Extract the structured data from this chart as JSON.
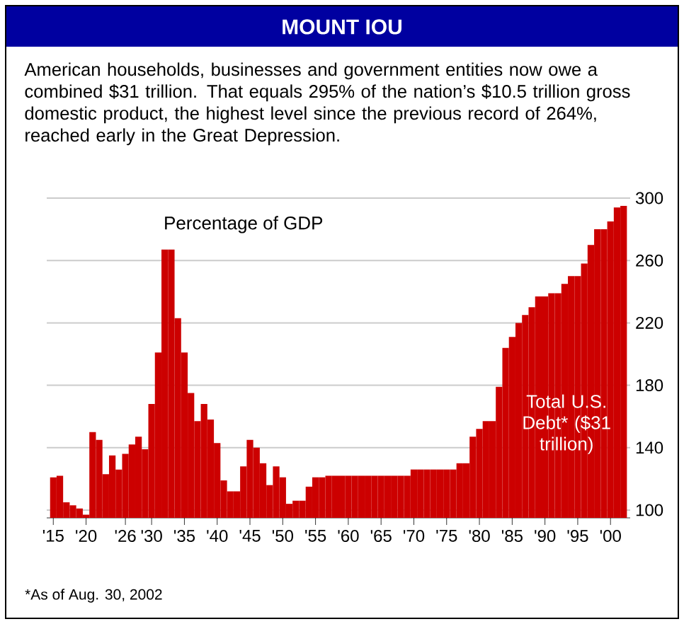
{
  "chart_data": {
    "type": "bar",
    "title": "MOUNT IOU",
    "subtitle": "American households, businesses and government entities now owe a combined $31 trillion. That equals 295% of the nation’s $10.5 trillion gross domestic product, the highest level since the previous record of 264%, reached early in the Great Depression.",
    "ylabel": "Percentage of GDP",
    "annotations": [
      "*As of Aug. 30, 2002"
    ],
    "x": [
      1915,
      1916,
      1917,
      1918,
      1919,
      1920,
      1921,
      1922,
      1923,
      1924,
      1925,
      1926,
      1927,
      1928,
      1929,
      1930,
      1931,
      1932,
      1933,
      1934,
      1935,
      1936,
      1937,
      1938,
      1939,
      1940,
      1941,
      1942,
      1943,
      1944,
      1945,
      1946,
      1947,
      1948,
      1949,
      1950,
      1951,
      1952,
      1953,
      1954,
      1955,
      1956,
      1957,
      1958,
      1959,
      1960,
      1961,
      1962,
      1963,
      1964,
      1965,
      1966,
      1967,
      1968,
      1969,
      1970,
      1971,
      1972,
      1973,
      1974,
      1975,
      1976,
      1977,
      1978,
      1979,
      1980,
      1981,
      1982,
      1983,
      1984,
      1985,
      1986,
      1987,
      1988,
      1989,
      1990,
      1991,
      1992,
      1993,
      1994,
      1995,
      1996,
      1997,
      1998,
      1999,
      2000,
      2001,
      2002
    ],
    "series": [
      {
        "name": "Total U.S. Debt* ($31 trillion)",
        "color": "#cc0000",
        "values": [
          121,
          122,
          105,
          103,
          101,
          97,
          150,
          145,
          123,
          135,
          126,
          136,
          142,
          147,
          139,
          168,
          201,
          267,
          267,
          223,
          201,
          175,
          157,
          168,
          158,
          143,
          119,
          112,
          112,
          128,
          145,
          140,
          130,
          116,
          128,
          121,
          104,
          106,
          106,
          115,
          121,
          121,
          122,
          122,
          122,
          122,
          122,
          122,
          122,
          122,
          122,
          122,
          122,
          122,
          122,
          126,
          126,
          126,
          126,
          126,
          126,
          126,
          130,
          130,
          147,
          152,
          157,
          157,
          179,
          204,
          211,
          220,
          225,
          230,
          237,
          237,
          239,
          239,
          245,
          250,
          250,
          258,
          270,
          280,
          280,
          285,
          294,
          295
        ]
      }
    ],
    "xlim": [
      1914,
      2003
    ],
    "ylim": [
      95,
      300
    ],
    "xticks": [
      {
        "value": 1915,
        "label": "'15"
      },
      {
        "value": 1920,
        "label": "'20"
      },
      {
        "value": 1926,
        "label": "'26"
      },
      {
        "value": 1930,
        "label": "'30"
      },
      {
        "value": 1935,
        "label": "'35"
      },
      {
        "value": 1940,
        "label": "'40"
      },
      {
        "value": 1945,
        "label": "'45"
      },
      {
        "value": 1950,
        "label": "'50"
      },
      {
        "value": 1955,
        "label": "'55"
      },
      {
        "value": 1960,
        "label": "'60"
      },
      {
        "value": 1965,
        "label": "'65"
      },
      {
        "value": 1970,
        "label": "'70"
      },
      {
        "value": 1975,
        "label": "'75"
      },
      {
        "value": 1980,
        "label": "'80"
      },
      {
        "value": 1985,
        "label": "'85"
      },
      {
        "value": 1990,
        "label": "'90"
      },
      {
        "value": 1995,
        "label": "'95"
      },
      {
        "value": 2000,
        "label": "'00"
      }
    ],
    "yticks": [
      100,
      140,
      180,
      220,
      260,
      300
    ],
    "grid": "y"
  }
}
